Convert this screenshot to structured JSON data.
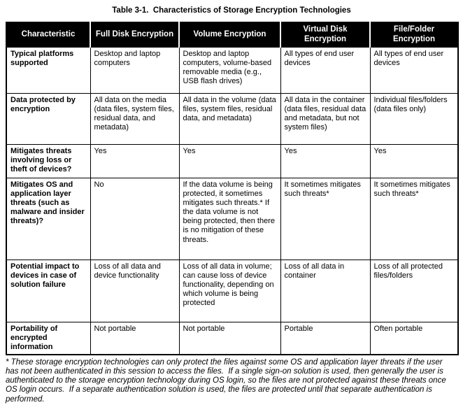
{
  "title": "Table 3-1.  Characteristics of Storage Encryption Technologies",
  "colors": {
    "header_bg": "#000000",
    "header_text": "#ffffff",
    "body_text": "#000000",
    "border": "#000000",
    "page_bg": "#ffffff"
  },
  "table": {
    "columns": [
      "Characteristic",
      "Full Disk Encryption",
      "Volume Encryption",
      "Virtual Disk Encryption",
      "File/Folder Encryption"
    ],
    "rows": [
      {
        "characteristic": "Typical platforms supported",
        "cells": [
          "Desktop and laptop computers",
          "Desktop and laptop computers, volume-based removable media (e.g., USB flash drives)",
          "All types of end user devices",
          "All types of end user devices"
        ]
      },
      {
        "characteristic": "Data protected by encryption",
        "cells": [
          "All data on the media (data files, system files, residual data, and metadata)",
          "All data in the volume (data files, system files, residual data, and metadata)",
          "All data in the container (data files, residual data and metadata, but not system files)",
          "Individual files/folders (data files only)"
        ]
      },
      {
        "characteristic": "Mitigates threats involving loss or theft of devices?",
        "cells": [
          "Yes",
          "Yes",
          "Yes",
          "Yes"
        ]
      },
      {
        "characteristic": "Mitigates OS and application layer threats (such as malware and insider threats)?",
        "cells": [
          "No",
          "If the data volume is being protected, it sometimes mitigates such threats.* If the data volume is not being protected, then there is no mitigation of these threats.",
          "It sometimes mitigates such threats*",
          "It sometimes mitigates such threats*"
        ]
      },
      {
        "characteristic": "Potential impact to devices in case of solution failure",
        "cells": [
          "Loss of all data and device functionality",
          "Loss of all data in volume; can cause loss of device functionality, depending on which volume is being protected",
          "Loss of all data in container",
          "Loss of all protected files/folders"
        ]
      },
      {
        "characteristic": "Portability of encrypted information",
        "cells": [
          "Not portable",
          "Not portable",
          "Portable",
          "Often portable"
        ]
      }
    ]
  },
  "footnote": "* These storage encryption technologies can only protect the files against some OS and application layer threats if the user has not been authenticated in this session to access the files.  If a single sign-on solution is used, then generally the user is authenticated to the storage encryption technology during OS login, so the files are not protected against these threats once OS login occurs.  If a separate authentication solution is used, the files are protected until that separate authentication is performed."
}
